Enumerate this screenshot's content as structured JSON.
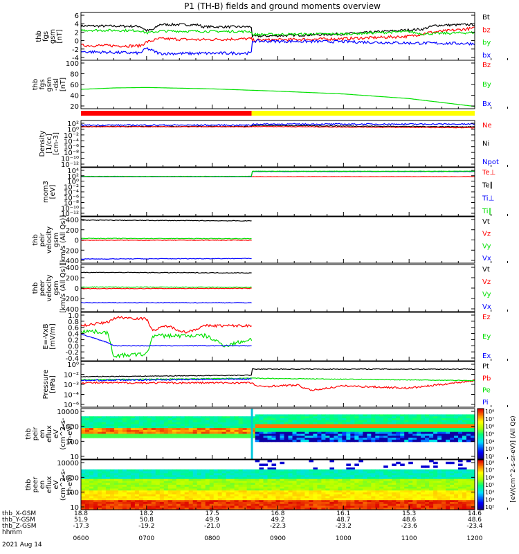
{
  "title": "P1 (TH-B) fields and ground moments overview",
  "date_label": "2021 Aug 14",
  "x_axis": {
    "ticks_hhmm": [
      "0600",
      "0700",
      "0800",
      "0900",
      "1000",
      "1100",
      "1200"
    ],
    "rows": [
      {
        "label": "thb_X-GSM",
        "values": [
          "18.8",
          "18.2",
          "17.5",
          "16.8",
          "16.1",
          "15.3",
          "14.6"
        ]
      },
      {
        "label": "thb_Y-GSM",
        "values": [
          "51.9",
          "50.8",
          "49.9",
          "49.2",
          "48.7",
          "48.6",
          "48.6"
        ]
      },
      {
        "label": "thb_Z-GSM",
        "values": [
          "-17.3",
          "-19.2",
          "-21.0",
          "-22.3",
          "-23.2",
          "-23.6",
          "-23.4"
        ]
      },
      {
        "label": "hhmm",
        "values": []
      }
    ]
  },
  "colors": {
    "black": "#000000",
    "red": "#ff0000",
    "green": "#00e000",
    "blue": "#0000ff",
    "yellow": "#ffff00"
  },
  "mode_bar": {
    "colors": [
      "red",
      "yellow"
    ],
    "switch_hour": 8.6
  },
  "colorbar": {
    "label": "[eV/(cm^2-s-sr-eV)] (All Qs)",
    "top_ticks": [
      "10⁸",
      "10⁷",
      "10⁶",
      "10⁵",
      "10⁴",
      "10³",
      "10²"
    ],
    "bottom_ticks": [
      "10⁸",
      "10⁷",
      "10⁶",
      "10⁵",
      "10⁴",
      "10³",
      "10²"
    ]
  },
  "chart_data": [
    {
      "type": "line",
      "id": "fgs",
      "ylabel": [
        "thb",
        "fgs",
        "gsm",
        "[nT]"
      ],
      "ylim": [
        -4,
        6
      ],
      "yticks": [
        "6",
        "4",
        "2",
        "0",
        "-2",
        "-4"
      ],
      "legend": [
        {
          "name": "Bt",
          "color": "black"
        },
        {
          "name": "bz",
          "color": "red"
        },
        {
          "name": "by",
          "color": "green"
        },
        {
          "name": "bx",
          "color": "blue"
        }
      ],
      "series": [
        {
          "color": "black",
          "noise": 0.25,
          "x": [
            6,
            6.9,
            7.0,
            7.1,
            7.2,
            7.8,
            7.85,
            8.6,
            8.6,
            10,
            10.6,
            11.2,
            11.4,
            12
          ],
          "y": [
            3.2,
            3.1,
            2.2,
            2.4,
            3.5,
            3.4,
            3.0,
            3.0,
            1.0,
            1.5,
            2.0,
            2.5,
            3.3,
            3.5
          ]
        },
        {
          "color": "red",
          "noise": 0.3,
          "x": [
            6,
            6.9,
            7.0,
            7.2,
            7.8,
            8.6,
            8.6,
            10,
            11.0,
            11.3,
            12
          ],
          "y": [
            -0.9,
            -1.0,
            -0.2,
            0.5,
            0.3,
            0.5,
            0.2,
            0.5,
            1.0,
            1.8,
            2.7
          ]
        },
        {
          "color": "green",
          "noise": 0.25,
          "x": [
            6,
            6.9,
            7.0,
            7.2,
            8.6,
            8.6,
            10,
            11,
            11.2,
            12
          ],
          "y": [
            2.3,
            2.2,
            1.7,
            2.1,
            2.0,
            1.4,
            1.5,
            2.0,
            1.5,
            1.8
          ]
        },
        {
          "color": "blue",
          "noise": 0.3,
          "x": [
            6,
            6.9,
            7.0,
            7.2,
            8.6,
            8.6,
            10,
            11.0,
            12
          ],
          "y": [
            -2.2,
            -2.5,
            -1.5,
            -2.6,
            -2.5,
            0.0,
            -0.1,
            -0.4,
            -0.5
          ]
        }
      ]
    },
    {
      "type": "line",
      "id": "fgs-dsl",
      "ylabel": [
        "thb",
        "fgs",
        "gsm",
        "-dsl",
        "[nT]"
      ],
      "ylim": [
        0,
        105
      ],
      "yticks": [
        "100",
        "80",
        "60",
        "40",
        "20"
      ],
      "legend": [
        {
          "name": "Bz",
          "color": "red"
        },
        {
          "name": "By",
          "color": "green"
        },
        {
          "name": "Bx",
          "color": "blue"
        }
      ],
      "series": [
        {
          "color": "green",
          "noise": 0,
          "x": [
            6,
            6.5,
            7,
            8,
            9,
            10,
            11,
            12
          ],
          "y": [
            42,
            45,
            46,
            43,
            38,
            32,
            22,
            5
          ]
        }
      ]
    },
    {
      "type": "line",
      "id": "density",
      "log": true,
      "ylabel": [
        "Density",
        "[1/cc]",
        "[cm-3]"
      ],
      "ylim": [
        -12,
        2
      ],
      "yticks": [
        "10²",
        "10⁰",
        "10⁻²",
        "10⁻⁴",
        "10⁻⁶",
        "10⁻⁸",
        "10⁻¹⁰",
        "10⁻¹²"
      ],
      "legend": [
        {
          "name": "Ne",
          "color": "red"
        },
        {
          "name": "Ni",
          "color": "black"
        },
        {
          "name": "Npot",
          "color": "blue"
        }
      ],
      "series": [
        {
          "color": "black",
          "noise": 0.12,
          "x": [
            6,
            8.6,
            8.6,
            12
          ],
          "y": [
            0.2,
            0.2,
            0.5,
            0.1
          ]
        },
        {
          "color": "red",
          "noise": 0.1,
          "x": [
            6,
            8.6,
            8.6,
            12
          ],
          "y": [
            0.1,
            0.1,
            0.2,
            -0.2
          ]
        },
        {
          "color": "blue",
          "noise": 0.2,
          "x": [
            6,
            8.6,
            8.6,
            12
          ],
          "y": [
            0.6,
            0.6,
            0.9,
            0.9
          ]
        }
      ]
    },
    {
      "type": "line",
      "id": "moms",
      "log": true,
      "ylabel": [
        "mom3",
        "[eV]"
      ],
      "ylim": [
        -12,
        4
      ],
      "yticks": [
        "10⁴",
        "10²",
        "10⁰",
        "10⁻²",
        "10⁻⁴",
        "10⁻⁶",
        "10⁻⁸",
        "10⁻¹⁰",
        "10⁻¹²"
      ],
      "legend": [
        {
          "name": "Te⊥",
          "color": "red"
        },
        {
          "name": "Te∥",
          "color": "black"
        },
        {
          "name": "Ti⊥",
          "color": "blue"
        },
        {
          "name": "Ti∥",
          "color": "green"
        }
      ],
      "series": [
        {
          "color": "red",
          "noise": 0.05,
          "x": [
            6,
            12
          ],
          "y": [
            1.0,
            1.0
          ]
        },
        {
          "color": "blue",
          "noise": 0.05,
          "x": [
            6,
            8.6,
            8.6,
            12
          ],
          "y": [
            1.0,
            1.0,
            2.7,
            2.7
          ]
        },
        {
          "color": "green",
          "noise": 0.05,
          "x": [
            6,
            8.6,
            8.6,
            12
          ],
          "y": [
            1.1,
            1.1,
            2.8,
            2.8
          ]
        }
      ]
    },
    {
      "type": "line",
      "id": "peir-vel",
      "ylabel": [
        "thb",
        "peir",
        "velocity",
        "gsm",
        "[km/s (All Qs)]"
      ],
      "ylim": [
        -450,
        450
      ],
      "yticks": [
        "400",
        "200",
        "0",
        "-200",
        "-400"
      ],
      "legend": [
        {
          "name": "Vt",
          "color": "black"
        },
        {
          "name": "Vz",
          "color": "red"
        },
        {
          "name": "Vy",
          "color": "green"
        },
        {
          "name": "Vx",
          "color": "blue"
        }
      ],
      "series": [
        {
          "color": "black",
          "noise": 6,
          "x": [
            6,
            8.6
          ],
          "y": [
            385,
            370
          ]
        },
        {
          "color": "red",
          "noise": 5,
          "x": [
            6,
            8.6
          ],
          "y": [
            -5,
            -5
          ]
        },
        {
          "color": "green",
          "noise": 6,
          "x": [
            6,
            8.6
          ],
          "y": [
            30,
            25
          ]
        },
        {
          "color": "blue",
          "noise": 6,
          "x": [
            6,
            8.6
          ],
          "y": [
            -370,
            -360
          ]
        }
      ]
    },
    {
      "type": "line",
      "id": "peer-vel",
      "ylabel": [
        "thb",
        "peer",
        "velocity",
        "gsm",
        "[km/s (All Qs)]"
      ],
      "ylim": [
        -450,
        450
      ],
      "yticks": [
        "400",
        "200",
        "0",
        "-200",
        "-400"
      ],
      "legend": [
        {
          "name": "Vt",
          "color": "black"
        },
        {
          "name": "Vz",
          "color": "red"
        },
        {
          "name": "Vy",
          "color": "green"
        },
        {
          "name": "Vx",
          "color": "blue"
        }
      ],
      "series": [
        {
          "color": "black",
          "noise": 6,
          "x": [
            6,
            8.6
          ],
          "y": [
            300,
            290
          ]
        },
        {
          "color": "red",
          "noise": 6,
          "x": [
            6,
            8.6
          ],
          "y": [
            -10,
            -5
          ]
        },
        {
          "color": "green",
          "noise": 6,
          "x": [
            6,
            8.6
          ],
          "y": [
            20,
            15
          ]
        },
        {
          "color": "blue",
          "noise": 6,
          "x": [
            6,
            8.6
          ],
          "y": [
            -280,
            -280
          ]
        }
      ]
    },
    {
      "type": "line",
      "id": "efield",
      "ylabel": [
        "E=-VxB",
        "[mV/m]"
      ],
      "ylim": [
        -0.45,
        1.0
      ],
      "yticks": [
        "1.0",
        "0.8",
        "0.6",
        "0.4",
        "0.2",
        "0.0",
        "-0.2",
        "-0.4"
      ],
      "legend": [
        {
          "name": "Ez",
          "color": "red"
        },
        {
          "name": "Ey",
          "color": "green"
        },
        {
          "name": "Ex",
          "color": "blue"
        }
      ],
      "series": [
        {
          "color": "red",
          "noise": 0.04,
          "x": [
            6,
            6.4,
            6.5,
            6.6,
            7.0,
            7.1,
            7.3,
            7.6,
            7.9,
            8.6
          ],
          "y": [
            0.6,
            0.7,
            0.82,
            0.85,
            0.8,
            0.45,
            0.6,
            0.4,
            0.6,
            0.6
          ]
        },
        {
          "color": "green",
          "noise": 0.06,
          "x": [
            6,
            6.4,
            6.5,
            7.0,
            7.1,
            7.5,
            7.9,
            8.2,
            8.6
          ],
          "y": [
            0.45,
            0.4,
            -0.3,
            -0.25,
            0.3,
            0.3,
            0.3,
            0.0,
            0.2
          ]
        },
        {
          "color": "blue",
          "noise": 0.01,
          "x": [
            6,
            6.4,
            6.5,
            7.0,
            7.1,
            8.6
          ],
          "y": [
            0.35,
            0.1,
            0.0,
            0.0,
            0.0,
            0.0
          ]
        }
      ]
    },
    {
      "type": "line",
      "id": "pressure",
      "log": true,
      "ylabel": [
        "Pressure",
        "[nPa]"
      ],
      "ylim": [
        -6,
        0
      ],
      "yticks": [
        "10⁰",
        "10⁻²",
        "10⁻³",
        "10⁻⁴",
        "10⁻⁶"
      ],
      "legend": [
        {
          "name": "Pt",
          "color": "black"
        },
        {
          "name": "Pb",
          "color": "red"
        },
        {
          "name": "Pe",
          "color": "green"
        },
        {
          "name": "Pi",
          "color": "blue"
        }
      ],
      "series": [
        {
          "color": "black",
          "noise": 0.05,
          "x": [
            6,
            8.6,
            8.6,
            12
          ],
          "y": [
            -2.0,
            -1.8,
            -1.0,
            -1.0
          ]
        },
        {
          "color": "red",
          "noise": 0.12,
          "x": [
            6,
            8.6,
            8.7,
            9.3,
            9.5,
            10.0,
            11.0,
            12
          ],
          "y": [
            -2.8,
            -2.8,
            -3.3,
            -3.1,
            -3.8,
            -3.2,
            -3.5,
            -2.5
          ]
        },
        {
          "color": "green",
          "noise": 0.05,
          "x": [
            6,
            8.6,
            12
          ],
          "y": [
            -2.4,
            -2.2,
            -2.5
          ]
        },
        {
          "color": "blue",
          "noise": 0.08,
          "x": [
            6,
            8.6
          ],
          "y": [
            -2.5,
            -2.3
          ]
        }
      ]
    },
    {
      "type": "heatmap",
      "id": "peir-eflux",
      "ylabel": [
        "thb",
        "peir",
        "en",
        "eflux",
        "eV",
        "(cm^2-s-",
        "sr-eV)"
      ],
      "ylim": [
        5,
        20000
      ],
      "yticks": [
        "10000",
        "1000",
        "100",
        "10"
      ]
    },
    {
      "type": "heatmap",
      "id": "peer-eflux",
      "ylabel": [
        "thb",
        "peer",
        "en",
        "eflux",
        "eV",
        "(cm^2-s-",
        "sr-eV)"
      ],
      "ylim": [
        5,
        20000
      ],
      "yticks": [
        "10000",
        "1000",
        "100",
        "10"
      ]
    }
  ]
}
